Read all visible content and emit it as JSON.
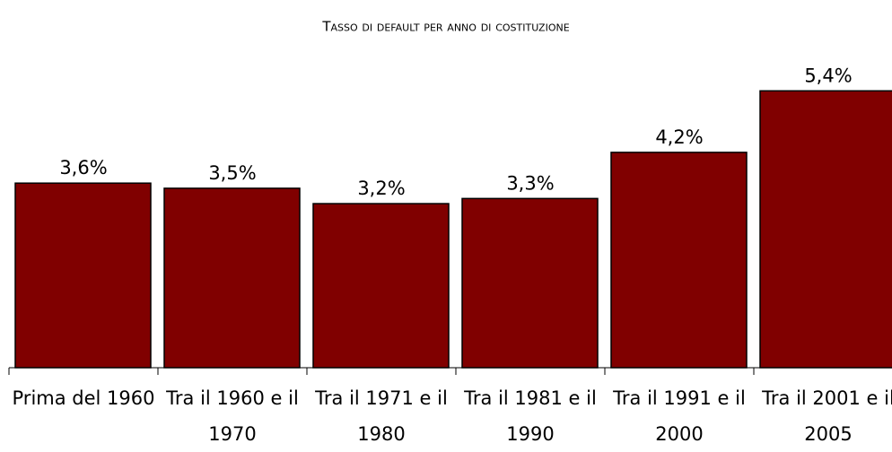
{
  "chart_data": {
    "type": "bar",
    "title": "Tasso di default per anno di costituzione",
    "categories": [
      "Prima del 1960",
      "Tra il 1960 e il 1970",
      "Tra il 1971 e il 1980",
      "Tra il 1981 e il 1990",
      "Tra il 1991 e il 2000",
      "Tra il 2001 e il 2005"
    ],
    "values": [
      3.6,
      3.5,
      3.2,
      3.3,
      4.2,
      5.4
    ],
    "value_labels": [
      "3,6%",
      "3,5%",
      "3,2%",
      "3,3%",
      "4,2%",
      "5,4%"
    ],
    "color": "#800000",
    "ylim": [
      0,
      6
    ]
  }
}
